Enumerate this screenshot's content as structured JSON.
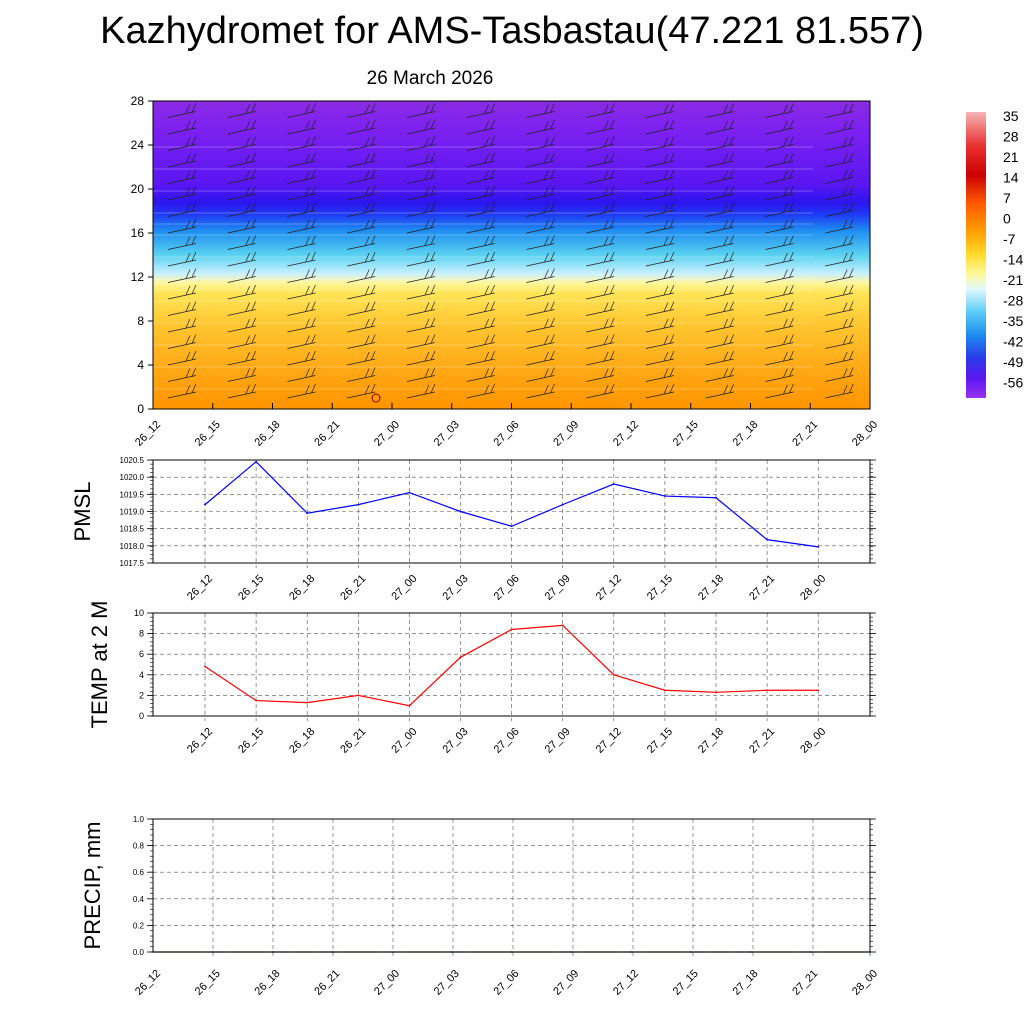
{
  "header": {
    "title": "Kazhydromet for AMS-Tasbastau(47.221 81.557)",
    "date": "26 March 2026"
  },
  "chart_data": [
    {
      "type": "heatmap",
      "name": "cross-section",
      "title": "",
      "xlabel": "",
      "ylabel": "",
      "x_ticks": [
        "26_12",
        "26_15",
        "26_18",
        "26_21",
        "27_00",
        "27_03",
        "27_06",
        "27_09",
        "27_12",
        "27_15",
        "27_18",
        "27_21",
        "28_00"
      ],
      "ylim": [
        0,
        28
      ],
      "y_ticks": [
        "0",
        "4",
        "8",
        "12",
        "16",
        "20",
        "24",
        "28"
      ],
      "colorbar": {
        "labels": [
          "35",
          "28",
          "21",
          "14",
          "7",
          "0",
          "-7",
          "-14",
          "-21",
          "-28",
          "-35",
          "-42",
          "-49",
          "-56"
        ],
        "range": [
          -60,
          38
        ]
      },
      "temperature_profile": {
        "heights": [
          0,
          2,
          4,
          6,
          8,
          10,
          11,
          12,
          14,
          16,
          17,
          18,
          20,
          22,
          24,
          28
        ],
        "values": [
          12,
          10,
          8,
          5,
          1,
          -3,
          -8,
          -16,
          -30,
          -46,
          -56,
          -52,
          -52,
          -56,
          -58,
          -58
        ]
      },
      "marker": {
        "x": "27_00",
        "y": 1,
        "symbol": "circle"
      }
    },
    {
      "type": "line",
      "name": "pmsl",
      "ylabel": "PMSL",
      "color": "#0000ff",
      "ylim": [
        1017.5,
        1020.5
      ],
      "y_ticks": [
        "1017.5",
        "1018.0",
        "1018.5",
        "1019.0",
        "1019.5",
        "1020.0",
        "1020.5"
      ],
      "categories": [
        "26_12",
        "26_15",
        "26_18",
        "26_21",
        "27_00",
        "27_03",
        "27_06",
        "27_09",
        "27_12",
        "27_15",
        "27_18",
        "27_21",
        "28_00"
      ],
      "values": [
        1019.2,
        1020.45,
        1018.95,
        1019.2,
        1019.55,
        1019.0,
        1018.57,
        1019.2,
        1019.8,
        1019.45,
        1019.4,
        1018.18,
        1017.97
      ]
    },
    {
      "type": "line",
      "name": "temp2m",
      "ylabel": "TEMP at 2 M",
      "color": "#ff0000",
      "ylim": [
        0,
        10
      ],
      "y_ticks": [
        "0",
        "2",
        "4",
        "6",
        "8",
        "10"
      ],
      "categories": [
        "26_12",
        "26_15",
        "26_18",
        "26_21",
        "27_00",
        "27_03",
        "27_06",
        "27_09",
        "27_12",
        "27_15",
        "27_18",
        "27_21",
        "28_00"
      ],
      "values": [
        4.8,
        1.5,
        1.3,
        2.0,
        1.0,
        5.7,
        8.4,
        8.8,
        4.0,
        2.5,
        2.3,
        2.5,
        2.5
      ]
    },
    {
      "type": "line",
      "name": "precip",
      "ylabel": "PRECIP, mm",
      "color": "#006400",
      "ylim": [
        0,
        1.0
      ],
      "y_ticks": [
        "0.0",
        "0.2",
        "0.4",
        "0.6",
        "0.8",
        "1.0"
      ],
      "categories": [
        "26_12",
        "26_15",
        "26_18",
        "26_21",
        "27_00",
        "27_03",
        "27_06",
        "27_09",
        "27_12",
        "27_15",
        "27_18",
        "27_21",
        "28_00"
      ],
      "values": [
        0,
        0,
        0,
        0,
        0,
        0,
        0,
        0,
        0,
        0,
        0,
        0,
        0
      ]
    }
  ]
}
